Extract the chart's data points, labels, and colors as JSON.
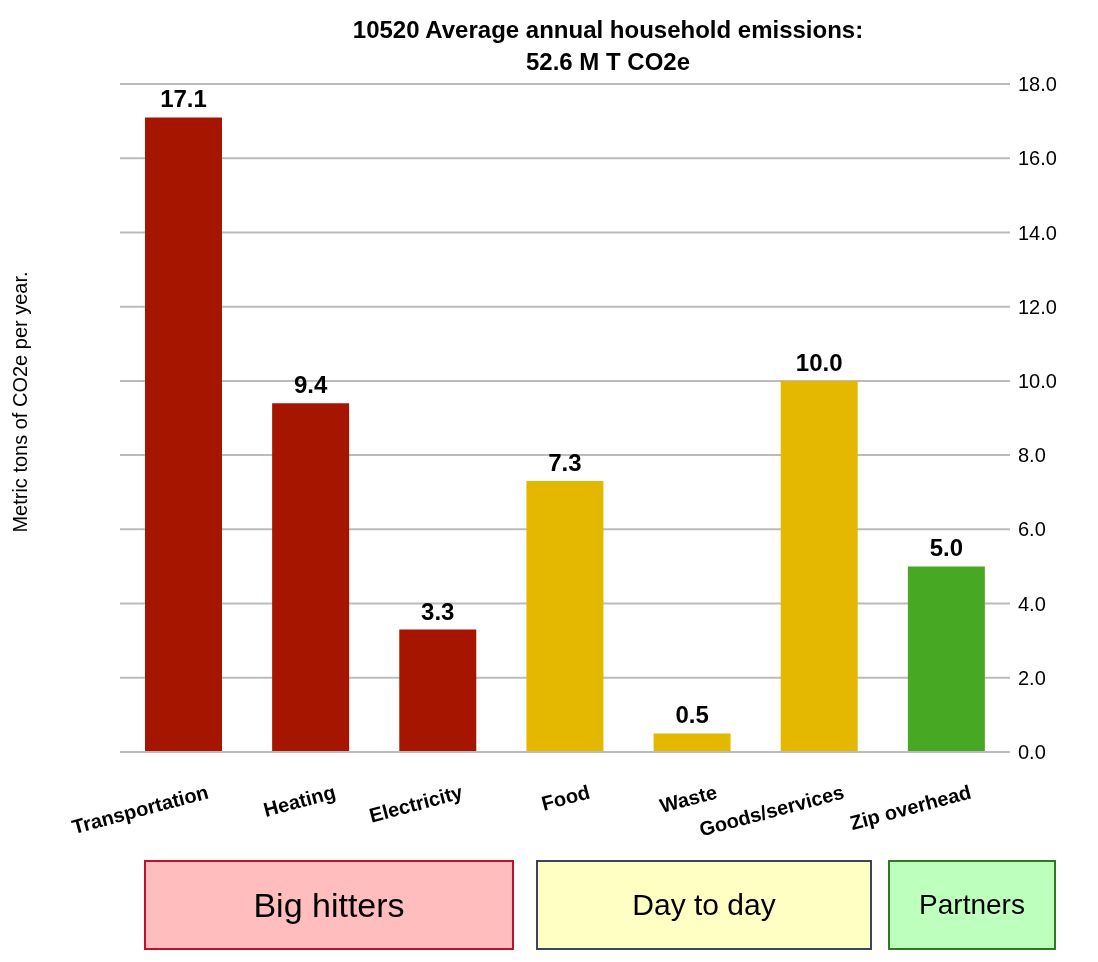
{
  "chart_data": {
    "type": "bar",
    "title": "10520 Average annual household emissions:\n52.6 M T CO2e",
    "ylabel": "Metric tons of CO2e per year.",
    "categories": [
      "Transportation",
      "Heating",
      "Electricity",
      "Food",
      "Waste",
      "Goods/services",
      "Zip overhead"
    ],
    "values": [
      17.1,
      9.4,
      3.3,
      7.3,
      0.5,
      10.0,
      5.0
    ],
    "colors": [
      "#a51500",
      "#a51500",
      "#a51500",
      "#e5b800",
      "#e5b800",
      "#e5b800",
      "#46a823"
    ],
    "value_labels": [
      "17.1",
      "9.4",
      "3.3",
      "7.3",
      "0.5",
      "10.0",
      "5.0"
    ],
    "ylim": [
      0,
      18
    ],
    "yticks": [
      {
        "value": 0,
        "label": "0.0"
      },
      {
        "value": 2,
        "label": "2.0"
      },
      {
        "value": 4,
        "label": "4.0"
      },
      {
        "value": 6,
        "label": "6.0"
      },
      {
        "value": 8,
        "label": "8.0"
      },
      {
        "value": 10,
        "label": "10.0"
      },
      {
        "value": 12,
        "label": "12.0"
      },
      {
        "value": 14,
        "label": "14.0"
      },
      {
        "value": 16,
        "label": "16.0"
      },
      {
        "value": 18,
        "label": "18.0"
      }
    ],
    "grid": "y",
    "annotations": [
      "Big hitters",
      "Day to day",
      "Partners"
    ]
  }
}
